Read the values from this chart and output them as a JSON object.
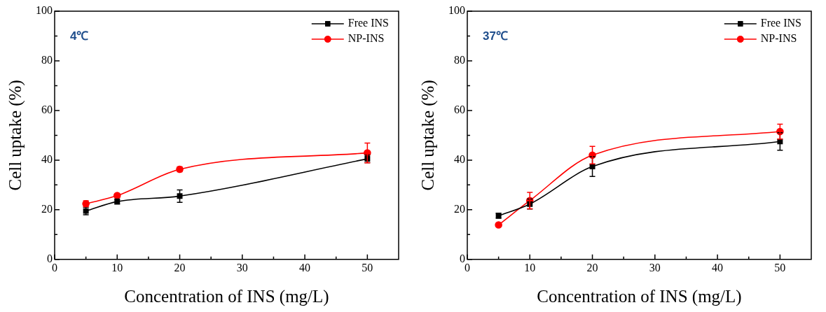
{
  "chart_data": [
    {
      "type": "line",
      "xlabel": "Concentration of INS (mg/L)",
      "ylabel": "Cell uptake (%)",
      "annotations": [
        "4℃"
      ],
      "x": [
        5,
        10,
        20,
        50
      ],
      "series": [
        {
          "name": "Free INS",
          "color": "#000000",
          "marker": "square",
          "values": [
            19.5,
            23.3,
            25.5,
            40.5
          ],
          "errors": [
            1.5,
            1,
            2.5,
            1.5
          ]
        },
        {
          "name": "NP-INS",
          "color": "#ff0000",
          "marker": "circle",
          "values": [
            22.4,
            25.7,
            36.3,
            42.9
          ],
          "errors": [
            1.2,
            0.6,
            1,
            4
          ]
        }
      ],
      "xlim": [
        0,
        55
      ],
      "xticks": [
        0,
        {
          "value": 5,
          "label": null
        },
        10,
        {
          "value": 15,
          "label": null
        },
        20,
        {
          "value": 25,
          "label": null
        },
        30,
        {
          "value": 35,
          "label": null
        },
        40,
        {
          "value": 45,
          "label": null
        },
        50
      ],
      "ylim": [
        0,
        100
      ],
      "yticks": [
        0,
        {
          "value": 10,
          "label": null
        },
        20,
        {
          "value": 30,
          "label": null
        },
        40,
        {
          "value": 50,
          "label": null
        },
        60,
        {
          "value": 70,
          "label": null
        },
        80,
        {
          "value": 90,
          "label": null
        },
        100
      ],
      "grid": false,
      "legend": "top right",
      "line_style": "solid"
    },
    {
      "type": "line",
      "xlabel": "Concentration of INS (mg/L)",
      "ylabel": "Cell uptake (%)",
      "annotations": [
        "37℃"
      ],
      "x": [
        5,
        10,
        20,
        50
      ],
      "series": [
        {
          "name": "Free INS",
          "color": "#000000",
          "marker": "square",
          "values": [
            17.6,
            22.3,
            37.4,
            47.5
          ],
          "errors": [
            1,
            2,
            4,
            3.5
          ]
        },
        {
          "name": "NP-INS",
          "color": "#ff0000",
          "marker": "circle",
          "values": [
            13.9,
            23.7,
            42,
            51.5
          ],
          "errors": [
            0.5,
            3.3,
            3.5,
            3
          ]
        }
      ],
      "xlim": [
        0,
        55
      ],
      "xticks": [
        0,
        {
          "value": 5,
          "label": null
        },
        10,
        {
          "value": 15,
          "label": null
        },
        20,
        {
          "value": 25,
          "label": null
        },
        30,
        {
          "value": 35,
          "label": null
        },
        40,
        {
          "value": 45,
          "label": null
        },
        50
      ],
      "ylim": [
        0,
        100
      ],
      "yticks": [
        0,
        {
          "value": 10,
          "label": null
        },
        20,
        {
          "value": 30,
          "label": null
        },
        40,
        {
          "value": 50,
          "label": null
        },
        60,
        {
          "value": 70,
          "label": null
        },
        80,
        {
          "value": 90,
          "label": null
        },
        100
      ],
      "grid": false,
      "legend": "top right",
      "line_style": "solid"
    }
  ]
}
